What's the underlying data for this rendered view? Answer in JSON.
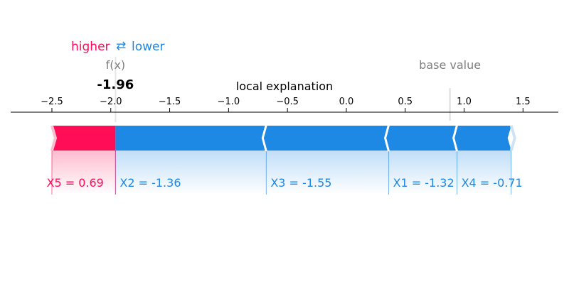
{
  "chart_data": {
    "type": "force",
    "title": "local explanation",
    "legend": {
      "higher": "higher",
      "arrow": "⇄",
      "lower": "lower"
    },
    "fx_label": "f(x)",
    "fx_value": -1.96,
    "fx_value_label": "-1.96",
    "base_value_label": "base value",
    "base_value": 0.88,
    "xlim": [
      -2.85,
      1.8
    ],
    "ticks": [
      -2.5,
      -2.0,
      -1.5,
      -1.0,
      -0.5,
      0.0,
      0.5,
      1.0,
      1.5
    ],
    "tick_labels": [
      "−2.5",
      "−2.0",
      "−1.5",
      "−1.0",
      "−0.5",
      "0.0",
      "0.5",
      "1.0",
      "1.5"
    ],
    "features": [
      {
        "label": "X5 = 0.69",
        "start": -2.5,
        "end": -1.96,
        "effect": "higher"
      },
      {
        "label": "X2 = -1.36",
        "start": -1.96,
        "end": -0.68,
        "effect": "lower"
      },
      {
        "label": "X3 = -1.55",
        "start": -0.68,
        "end": 0.36,
        "effect": "lower"
      },
      {
        "label": "X1 = -1.32",
        "start": 0.36,
        "end": 0.94,
        "effect": "lower"
      },
      {
        "label": "X4 = -0.71",
        "start": 0.94,
        "end": 1.4,
        "effect": "lower"
      }
    ],
    "colors": {
      "higher": "#ff0d57",
      "lower": "#1e88e5",
      "axis": "#000000",
      "muted": "#808080"
    }
  }
}
